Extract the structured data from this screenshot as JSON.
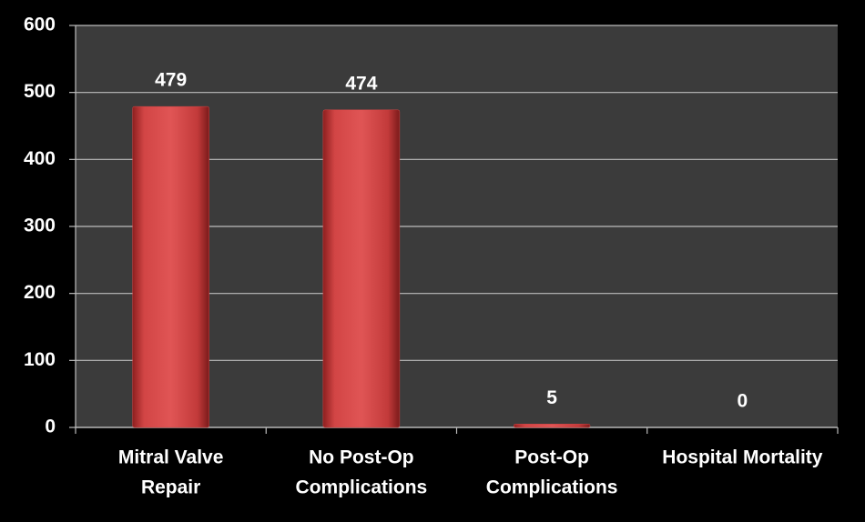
{
  "chart_data": {
    "type": "bar",
    "categories": [
      [
        "Mitral Valve",
        "Repair"
      ],
      [
        "No Post-Op",
        "Complications"
      ],
      [
        "Post-Op",
        "Complications"
      ],
      [
        "Hospital Mortality"
      ]
    ],
    "values": [
      479,
      474,
      5,
      0
    ],
    "color": "#d64545",
    "ylim": [
      0,
      600
    ],
    "yticks": [
      0,
      100,
      200,
      300,
      400,
      500,
      600
    ],
    "grid": true
  }
}
